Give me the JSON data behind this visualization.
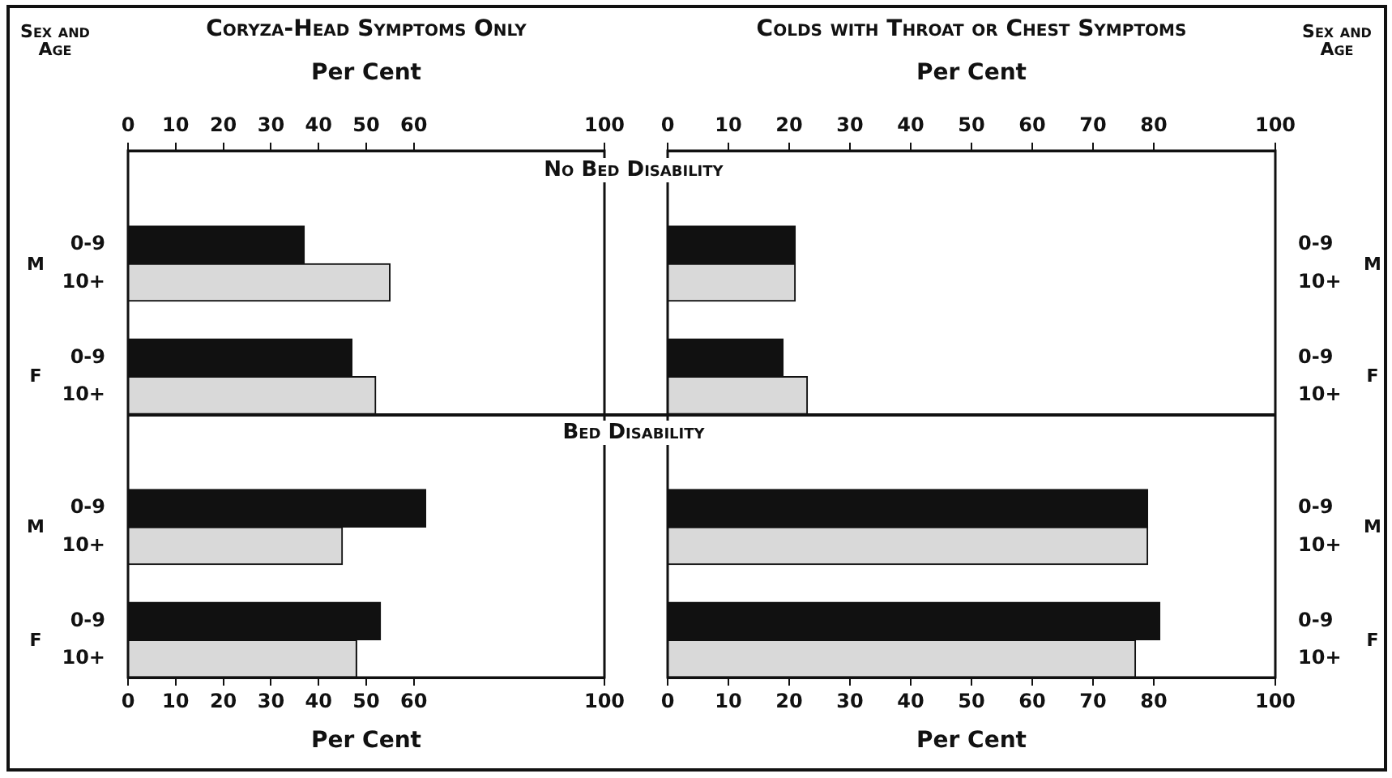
{
  "chart_data": [
    {
      "type": "bar",
      "orientation": "horizontal",
      "title": "Coryza-Head Symptoms Only",
      "xlabel": "Per Cent",
      "x2label": "Per Cent",
      "ylabel": "Sex and Age",
      "categories": [
        null,
        null,
        "0-9",
        "10+",
        null,
        "0-9",
        "10+",
        null,
        null,
        "0-9",
        "10+",
        null,
        "0-9",
        "10+"
      ],
      "values": [
        null,
        null,
        37,
        55,
        null,
        47,
        52,
        null,
        null,
        62.5,
        45,
        null,
        53,
        48
      ],
      "colors": [
        null,
        null,
        "#111111",
        "#d9d9d9",
        null,
        "#111111",
        "#d9d9d9",
        null,
        null,
        "#111111",
        "#d9d9d9",
        null,
        "#111111",
        "#d9d9d9"
      ],
      "xlim": [
        0,
        100
      ],
      "xticks": [
        0,
        10,
        20,
        30,
        40,
        50,
        60,
        100
      ],
      "x2lim": [
        0,
        100
      ],
      "x2ticks": [
        0,
        10,
        20,
        30,
        40,
        50,
        60,
        100
      ],
      "annotations": [
        "No Bed Disability",
        "Bed Disability",
        "M",
        "F",
        "M",
        "F"
      ]
    },
    {
      "type": "bar",
      "orientation": "horizontal",
      "title": "Colds with Throat or Chest Symptoms",
      "xlabel": "Per Cent",
      "x2label": "Per Cent",
      "ylabel": "Sex and Age",
      "categories": [
        null,
        null,
        "0-9",
        "10+",
        null,
        "0-9",
        "10+",
        null,
        null,
        "0-9",
        "10+",
        null,
        "0-9",
        "10+"
      ],
      "values": [
        null,
        null,
        21,
        21,
        null,
        19,
        23,
        null,
        null,
        79,
        79,
        null,
        81,
        77
      ],
      "colors": [
        null,
        null,
        "#111111",
        "#d9d9d9",
        null,
        "#111111",
        "#d9d9d9",
        null,
        null,
        "#111111",
        "#d9d9d9",
        null,
        "#111111",
        "#d9d9d9"
      ],
      "xlim": [
        0,
        100
      ],
      "xticks": [
        0,
        10,
        20,
        30,
        40,
        50,
        60,
        70,
        80,
        100
      ],
      "x2lim": [
        0,
        100
      ],
      "x2ticks": [
        0,
        10,
        20,
        30,
        40,
        50,
        60,
        70,
        80,
        100
      ],
      "annotations": [
        "M",
        "F",
        "M",
        "F"
      ]
    }
  ]
}
